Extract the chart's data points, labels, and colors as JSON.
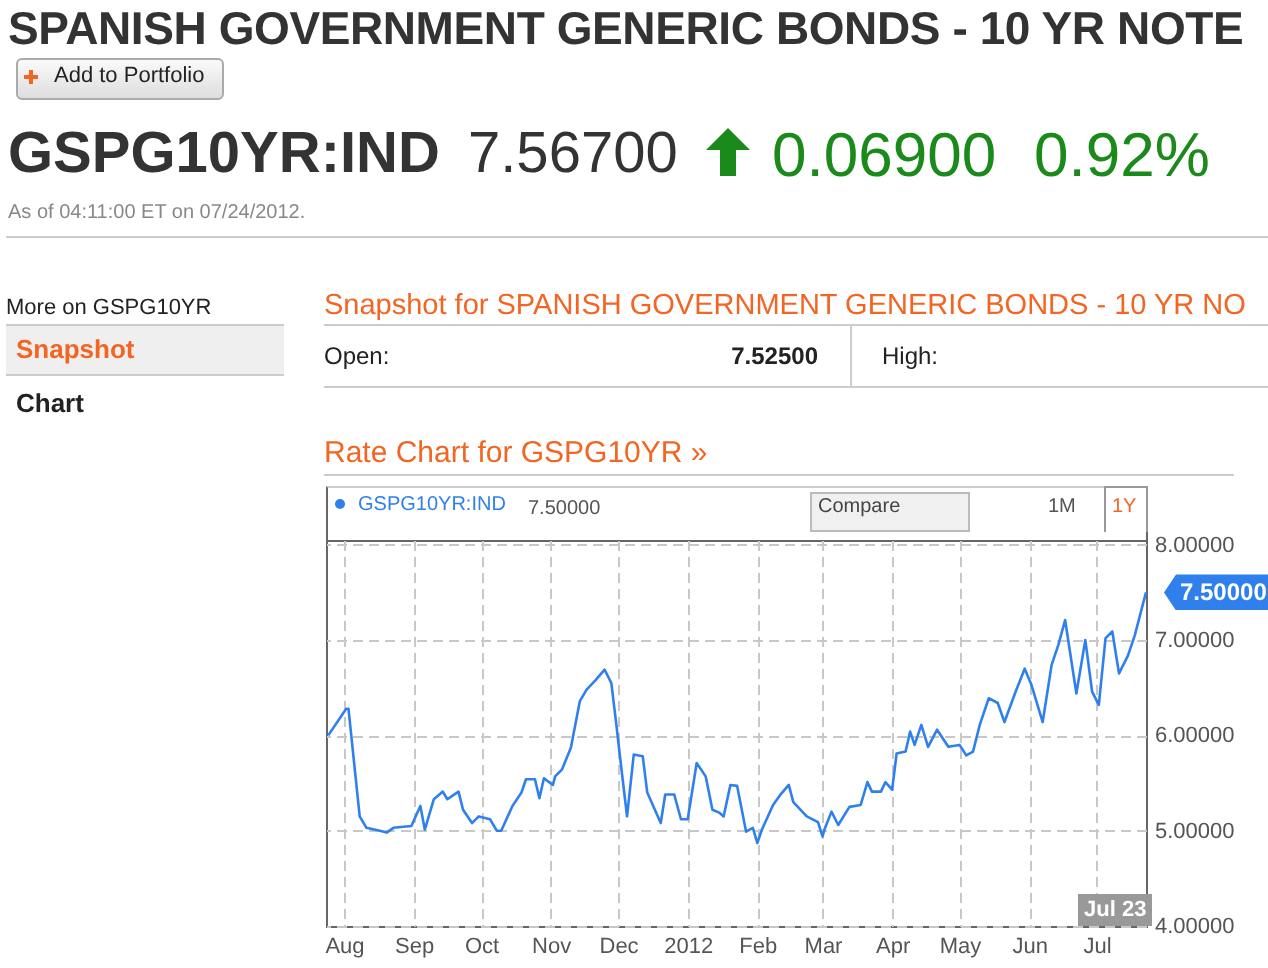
{
  "chart_data": {
    "type": "line",
    "title": "SPANISH GOVERNMENT GENERIC BONDS - 10 YR NOTE",
    "subtitle": "Rate Chart for GSPG10YR »",
    "annotations": [
      "Add to Portfolio",
      "GSPG10YR:IND",
      "7.56700",
      "0.06900",
      "0.92%",
      "As of 04:11:00 ET on 07/24/2012.",
      "More on GSPG10YR",
      "Snapshot",
      "Chart",
      "Snapshot for SPANISH GOVERNMENT GENERIC BONDS - 10 YR NO",
      "Open:",
      "7.52500",
      "High:",
      "7.50000",
      "Compare",
      "1M",
      "1Y",
      "Jul 23",
      {
        "text": "7.50000",
        "x": "2012-07-23",
        "y": 7.5
      }
    ],
    "x": [
      "2011-07-25",
      "2011-08-02",
      "2011-08-03",
      "2011-08-08",
      "2011-08-11",
      "2011-08-17",
      "2011-08-20",
      "2011-08-23",
      "2011-08-31",
      "2011-09-04",
      "2011-09-06",
      "2011-09-10",
      "2011-09-14",
      "2011-09-16",
      "2011-09-21",
      "2011-09-23",
      "2011-09-27",
      "2011-09-30",
      "2011-10-05",
      "2011-10-08",
      "2011-10-10",
      "2011-10-15",
      "2011-10-19",
      "2011-10-21",
      "2011-10-25",
      "2011-10-27",
      "2011-10-29",
      "2011-11-02",
      "2011-11-03",
      "2011-11-06",
      "2011-11-10",
      "2011-11-14",
      "2011-11-17",
      "2011-11-21",
      "2011-11-25",
      "2011-11-28",
      "2011-11-30",
      "2011-12-02",
      "2011-12-05",
      "2011-12-08",
      "2011-12-12",
      "2011-12-14",
      "2011-12-20",
      "2011-12-22",
      "2011-12-26",
      "2011-12-29",
      "2012-01-01",
      "2012-01-05",
      "2012-01-09",
      "2012-01-12",
      "2012-01-15",
      "2012-01-17",
      "2012-01-20",
      "2012-01-23",
      "2012-01-27",
      "2012-01-30",
      "2012-02-01",
      "2012-02-03",
      "2012-02-08",
      "2012-02-11",
      "2012-02-15",
      "2012-02-17",
      "2012-02-23",
      "2012-02-28",
      "2012-03-01",
      "2012-03-02",
      "2012-03-05",
      "2012-03-08",
      "2012-03-13",
      "2012-03-18",
      "2012-03-21",
      "2012-03-23",
      "2012-03-27",
      "2012-03-29",
      "2012-04-01",
      "2012-04-03",
      "2012-04-07",
      "2012-04-09",
      "2012-04-11",
      "2012-04-14",
      "2012-04-17",
      "2012-04-21",
      "2012-04-26",
      "2012-05-01",
      "2012-05-04",
      "2012-05-07",
      "2012-05-10",
      "2012-05-14",
      "2012-05-18",
      "2012-05-21",
      "2012-05-26",
      "2012-05-30",
      "2012-06-02",
      "2012-06-07",
      "2012-06-11",
      "2012-06-14",
      "2012-06-17",
      "2012-06-22",
      "2012-06-26",
      "2012-06-29",
      "2012-07-02",
      "2012-07-05",
      "2012-07-08",
      "2012-07-11",
      "2012-07-15",
      "2012-07-18",
      "2012-07-23"
    ],
    "series": [
      {
        "name": "GSPG10YR:IND",
        "color": "#2f80ed",
        "values": [
          6.0,
          6.28,
          6.28,
          5.15,
          5.03,
          5.0,
          4.98,
          5.03,
          5.05,
          5.26,
          5.01,
          5.33,
          5.41,
          5.33,
          5.41,
          5.22,
          5.08,
          5.15,
          5.12,
          5.0,
          5.0,
          5.26,
          5.4,
          5.54,
          5.54,
          5.34,
          5.55,
          5.48,
          5.57,
          5.64,
          5.87,
          6.36,
          6.48,
          6.58,
          6.69,
          6.55,
          6.16,
          5.75,
          5.15,
          5.8,
          5.78,
          5.4,
          5.08,
          5.38,
          5.38,
          5.12,
          5.12,
          5.71,
          5.57,
          5.22,
          5.19,
          5.15,
          5.48,
          5.47,
          4.99,
          5.03,
          4.87,
          5.01,
          5.27,
          5.37,
          5.48,
          5.3,
          5.15,
          5.09,
          4.94,
          5.02,
          5.2,
          5.06,
          5.25,
          5.27,
          5.51,
          5.41,
          5.41,
          5.51,
          5.43,
          5.81,
          5.83,
          6.04,
          5.9,
          6.11,
          5.88,
          6.06,
          5.88,
          5.9,
          5.79,
          5.83,
          6.11,
          6.39,
          6.34,
          6.14,
          6.46,
          6.7,
          6.53,
          6.14,
          6.74,
          6.95,
          7.21,
          6.44,
          7.0,
          6.46,
          6.32,
          7.02,
          7.09,
          6.65,
          6.84,
          7.05,
          7.5
        ]
      }
    ],
    "xlim": [
      "2011-07-24",
      "2012-07-23"
    ],
    "xticks": [
      {
        "value": "2011-08-01",
        "label": "Aug"
      },
      {
        "value": "2011-09-01",
        "label": "Sep"
      },
      {
        "value": "2011-10-01",
        "label": "Oct"
      },
      {
        "value": "2011-11-01",
        "label": "Nov"
      },
      {
        "value": "2011-12-01",
        "label": "Dec"
      },
      {
        "value": "2012-01-01",
        "label": "2012"
      },
      {
        "value": "2012-02-01",
        "label": "Feb"
      },
      {
        "value": "2012-03-01",
        "label": "Mar"
      },
      {
        "value": "2012-04-01",
        "label": "Apr"
      },
      {
        "value": "2012-05-01",
        "label": "May"
      },
      {
        "value": "2012-06-01",
        "label": "Jun"
      },
      {
        "value": "2012-07-01",
        "label": "Jul"
      }
    ],
    "ylim": [
      4,
      8.05
    ],
    "yticks": [
      {
        "value": 4,
        "label": "4.00000"
      },
      {
        "value": 5,
        "label": "5.00000"
      },
      {
        "value": 6,
        "label": "6.00000"
      },
      {
        "value": 7,
        "label": "7.00000"
      },
      {
        "value": 8,
        "label": "8.00000"
      }
    ],
    "grid": true,
    "legend": "top left",
    "marker": "none",
    "line_style": "solid"
  }
}
